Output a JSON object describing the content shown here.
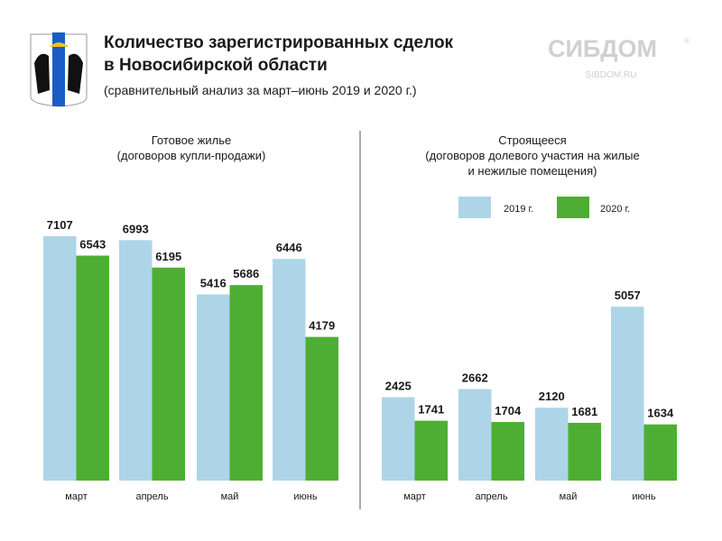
{
  "header": {
    "title_line1": "Количество зарегистрированных сделок",
    "title_line2": "в Новосибирской области",
    "subtitle": "(сравнительный анализ за март–июнь 2019 и 2020 г.)",
    "brand": "СИБДОМ",
    "brand_mark": "®",
    "brand_url": "SIBDOM.RU"
  },
  "colors": {
    "y2019": "#aed4e8",
    "y2020": "#4eae33",
    "text": "#1a1a1a",
    "brand": "#d0d0d0",
    "divider": "#555555"
  },
  "chart_data": [
    {
      "type": "bar",
      "title": "Готовое жилье",
      "subtitle": "(договоров купли-продажи)",
      "categories": [
        "март",
        "апрель",
        "май",
        "июнь"
      ],
      "series": [
        {
          "name": "2019 г.",
          "values": [
            7107,
            6993,
            5416,
            6446
          ]
        },
        {
          "name": "2020 г.",
          "values": [
            6543,
            6195,
            5686,
            4179
          ]
        }
      ],
      "ylim": [
        0,
        7107
      ]
    },
    {
      "type": "bar",
      "title": "Строящееся",
      "subtitle_line1": "(договоров долевого участия на жилые",
      "subtitle_line2": "и нежилые помещения)",
      "categories": [
        "март",
        "апрель",
        "май",
        "июнь"
      ],
      "series": [
        {
          "name": "2019 г.",
          "values": [
            2425,
            2662,
            2120,
            5057
          ]
        },
        {
          "name": "2020 г.",
          "values": [
            1741,
            1704,
            1681,
            1634
          ]
        }
      ],
      "legend": {
        "position": "top",
        "items": [
          "2019 г.",
          "2020 г."
        ]
      }
    }
  ]
}
